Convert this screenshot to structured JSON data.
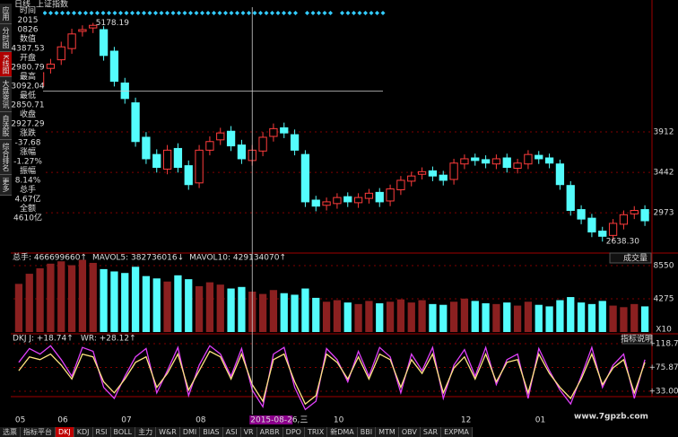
{
  "ui": {
    "header": [
      "日线",
      "上证指数"
    ],
    "side_tabs": [
      "应用",
      "分时图",
      "K线图",
      "大盘资讯",
      "自选股",
      "综合排名",
      "更多"
    ],
    "info": [
      [
        "时间",
        "2015",
        "0826"
      ],
      [
        "数值",
        4387.53
      ],
      [
        "开盘",
        2980.79
      ],
      [
        "最高",
        3092.04
      ],
      [
        "最低",
        2850.71
      ],
      [
        "收盘",
        2927.29
      ],
      [
        "涨跌",
        -37.68
      ],
      [
        "涨幅",
        "-1.27%"
      ],
      [
        "振幅",
        "8.14%"
      ],
      [
        "总手",
        "4.67亿"
      ],
      [
        "全额",
        "4610亿"
      ]
    ],
    "volume_select": "成交量",
    "indicator_button": "指标说明",
    "watermark": "www.7gpzb.com",
    "bottom_tabs": [
      "选票",
      "指标平台",
      "DKJ",
      "KDJ",
      "RSI",
      "BOLL",
      "主力",
      "W&R",
      "DMI",
      "BIAS",
      "ASI",
      "VR",
      "ARBR",
      "DPO",
      "TRIX",
      "新DMA",
      "BBI",
      "MTM",
      "OBV",
      "SAR",
      "EXPMA"
    ]
  },
  "chart_data": [
    {
      "type": "candlestick",
      "opens": [
        4100,
        4150,
        4450,
        4650,
        4750,
        4880,
        5080,
        5120,
        5100,
        4850,
        4480,
        4250,
        3850,
        3650,
        3480,
        3720,
        3520,
        3320,
        3700,
        3820,
        3920,
        3760,
        3580,
        3690,
        3860,
        3960,
        3880,
        3650,
        3120,
        3060,
        3080,
        3160,
        3090,
        3140,
        3210,
        3110,
        3240,
        3340,
        3420,
        3460,
        3410,
        3360,
        3540,
        3610,
        3590,
        3540,
        3610,
        3490,
        3540,
        3640,
        3610,
        3540,
        3290,
        3010,
        2910,
        2760,
        2710,
        2840,
        2960,
        3010
      ],
      "highs": [
        4260,
        4460,
        4660,
        4760,
        4960,
        5110,
        5150,
        5178.19,
        5140,
        4900,
        4540,
        4310,
        3910,
        3710,
        3760,
        3780,
        3580,
        3760,
        3860,
        3960,
        3980,
        3820,
        3760,
        3910,
        4010,
        4020,
        3940,
        3700,
        3170,
        3150,
        3200,
        3210,
        3200,
        3250,
        3260,
        3300,
        3400,
        3450,
        3500,
        3510,
        3460,
        3600,
        3650,
        3660,
        3640,
        3650,
        3660,
        3600,
        3700,
        3690,
        3660,
        3590,
        3340,
        3060,
        2960,
        2810,
        2900,
        3000,
        3050,
        3060
      ],
      "lows": [
        4040,
        4090,
        4390,
        4590,
        4690,
        4820,
        5020,
        5060,
        4740,
        4440,
        4240,
        3740,
        3540,
        3440,
        3420,
        3440,
        3240,
        3260,
        3640,
        3760,
        3690,
        3540,
        3520,
        3630,
        3800,
        3840,
        3640,
        3040,
        2990,
        3000,
        3020,
        3040,
        3030,
        3080,
        3040,
        3050,
        3180,
        3280,
        3360,
        3340,
        3290,
        3300,
        3480,
        3520,
        3490,
        3480,
        3440,
        3430,
        3480,
        3540,
        3490,
        3240,
        2940,
        2840,
        2690,
        2638.3,
        2650,
        2780,
        2900,
        2820
      ],
      "closes": [
        4200,
        4400,
        4600,
        4700,
        4900,
        5050,
        5100,
        5150,
        4800,
        4500,
        4300,
        3800,
        3600,
        3500,
        3700,
        3500,
        3300,
        3700,
        3800,
        3900,
        3750,
        3600,
        3700,
        3850,
        3950,
        3900,
        3700,
        3100,
        3050,
        3100,
        3150,
        3100,
        3150,
        3200,
        3100,
        3250,
        3350,
        3400,
        3450,
        3400,
        3350,
        3550,
        3600,
        3580,
        3550,
        3600,
        3500,
        3550,
        3650,
        3600,
        3550,
        3300,
        3000,
        2900,
        2750,
        2700,
        2850,
        2950,
        3000,
        2880
      ],
      "up_color": "#ff3c3c",
      "down_color": "#54fcfc",
      "high_label": 5178.19,
      "low_label": {
        "value": 2638.3,
        "label": "2638.30"
      },
      "ylim": [
        2526,
        5340
      ],
      "yticks": [
        3912,
        3442,
        2973
      ],
      "grid": true
    },
    {
      "type": "bar",
      "legend_text": [
        "总手: 466699660↑",
        "MAVOL5: 382736016↓",
        "MAVOL10: 429134070↑"
      ],
      "unit": "X10",
      "values": [
        6200,
        7500,
        8200,
        8800,
        9100,
        8600,
        9300,
        8900,
        8100,
        7800,
        7600,
        8400,
        7200,
        6900,
        6500,
        7300,
        6800,
        5900,
        6400,
        6100,
        5600,
        5800,
        5200,
        4900,
        5400,
        5000,
        4800,
        5600,
        4400,
        3900,
        4100,
        3800,
        3600,
        4000,
        3700,
        3900,
        4200,
        3800,
        4100,
        3600,
        3500,
        3900,
        4300,
        4000,
        3700,
        3600,
        3800,
        3400,
        3900,
        3500,
        3300,
        4100,
        4500,
        3800,
        3600,
        4000,
        3400,
        3200,
        3600,
        3300
      ],
      "ylim": [
        0,
        9820
      ],
      "yticks": [
        8550,
        4275
      ]
    },
    {
      "type": "line",
      "legend_text": [
        "DKJ J: +18.74↑",
        "WR: +28.12↑"
      ],
      "categories": [
        "05",
        null,
        null,
        null,
        "06",
        null,
        null,
        null,
        null,
        null,
        "07",
        null,
        null,
        null,
        null,
        null,
        null,
        "08",
        null,
        null,
        null,
        null,
        "2015-08-26,三",
        null,
        null,
        null,
        null,
        null,
        null,
        null,
        "10",
        null,
        null,
        null,
        null,
        null,
        null,
        null,
        null,
        null,
        null,
        null,
        "12",
        null,
        null,
        null,
        null,
        null,
        null,
        "01",
        null,
        null,
        null,
        null,
        null,
        null,
        null,
        null,
        null,
        null
      ],
      "series": [
        {
          "color": "#e040fb",
          "values": [
            85,
            110,
            100,
            115,
            90,
            60,
            112,
            105,
            40,
            20,
            60,
            95,
            110,
            30,
            70,
            112,
            25,
            80,
            115,
            100,
            60,
            110,
            35,
            5,
            100,
            112,
            40,
            0,
            15,
            110,
            90,
            50,
            105,
            60,
            112,
            95,
            30,
            100,
            70,
            112,
            20,
            80,
            108,
            60,
            112,
            45,
            90,
            100,
            20,
            110,
            70,
            35,
            10,
            60,
            112,
            40,
            80,
            100,
            20,
            90
          ]
        },
        {
          "color": "#ffe680",
          "values": [
            70,
            95,
            90,
            100,
            80,
            55,
            100,
            95,
            50,
            30,
            55,
            85,
            95,
            40,
            65,
            100,
            35,
            70,
            105,
            95,
            55,
            100,
            45,
            15,
            90,
            100,
            50,
            10,
            25,
            100,
            85,
            55,
            95,
            55,
            100,
            90,
            40,
            90,
            65,
            100,
            30,
            75,
            95,
            55,
            100,
            50,
            85,
            90,
            30,
            100,
            65,
            40,
            20,
            55,
            100,
            45,
            75,
            90,
            30,
            85
          ]
        }
      ],
      "ylim": [
        26.5,
        134.9
      ],
      "yticks": [
        {
          "value": 118.7,
          "label": "+118.7"
        },
        {
          "value": 75.87,
          "label": "+75.87"
        },
        {
          "value": 33.0,
          "label": "+33.00"
        }
      ]
    }
  ]
}
